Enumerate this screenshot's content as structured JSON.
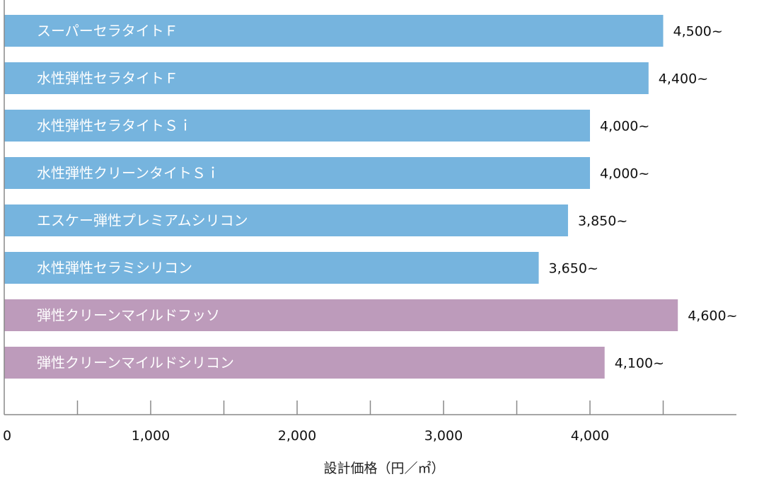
{
  "chart_data": {
    "type": "bar",
    "orientation": "horizontal",
    "categories": [
      "スーパーセラタイトＦ",
      "水性弾性セラタイトＦ",
      "水性弾性セラタイトＳｉ",
      "水性弾性クリーンタイトＳｉ",
      "エスケー弾性プレミアムシリコン",
      "水性弾性セラミシリコン",
      "弾性クリーンマイルドフッソ",
      "弾性クリーンマイルドシリコン"
    ],
    "values": [
      4500,
      4400,
      4000,
      4000,
      3850,
      3650,
      4600,
      4100
    ],
    "value_labels": [
      "4,500~",
      "4,400~",
      "4,000~",
      "4,000~",
      "3,850~",
      "3,650~",
      "4,600~",
      "4,100~"
    ],
    "bar_colors": [
      "#76b4de",
      "#76b4de",
      "#76b4de",
      "#76b4de",
      "#76b4de",
      "#76b4de",
      "#bd9bbb",
      "#bd9bbb"
    ],
    "xlabel": "設計価格（円／㎡）",
    "ylabel": "",
    "xlim": [
      0,
      5000
    ],
    "xticks": [
      0,
      1000,
      2000,
      3000,
      4000
    ],
    "xtick_labels": [
      "0",
      "1,000",
      "2,000",
      "3,000",
      "4,000"
    ],
    "minor_ticks": [
      500,
      1500,
      2500,
      3500,
      4500
    ],
    "grid": false,
    "axis_color": "#888888"
  }
}
